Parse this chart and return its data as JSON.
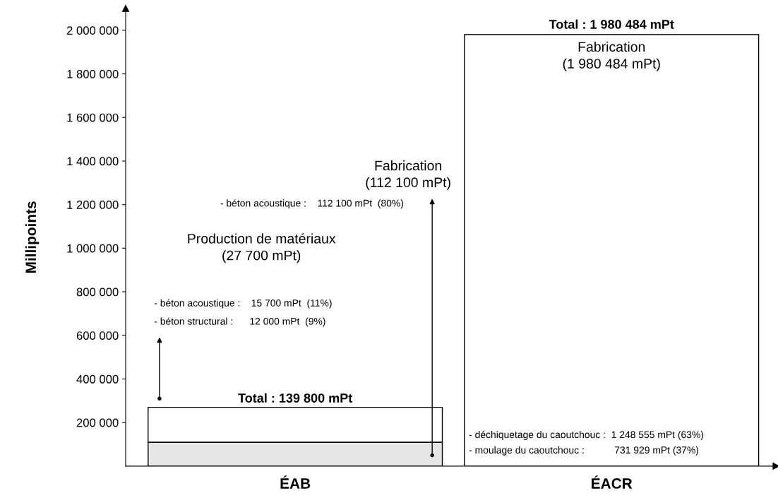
{
  "chart_data": {
    "type": "bar",
    "stacked": true,
    "ylabel": "Millipoints",
    "categories": [
      "ÉAB",
      "ÉACR"
    ],
    "series": [
      {
        "colors": [
          "#e6e6e6",
          "#ffffff"
        ],
        "values": [
          110000,
          1980000
        ]
      },
      {
        "colors": [
          "#ffffff",
          "#ffffff"
        ],
        "values": [
          160000,
          null
        ]
      }
    ],
    "ylim": [
      0,
      2100000
    ],
    "yticks": [
      {
        "value": 200000,
        "label": "200 000"
      },
      {
        "value": 400000,
        "label": "400 000"
      },
      {
        "value": 600000,
        "label": "600 000"
      },
      {
        "value": 800000,
        "label": "800 000"
      },
      {
        "value": 1000000,
        "label": "1 000 000"
      },
      {
        "value": 1200000,
        "label": "1 200 000"
      },
      {
        "value": 1400000,
        "label": "1 400 000"
      },
      {
        "value": 1600000,
        "label": "1 600 000"
      },
      {
        "value": 1800000,
        "label": "1 800 000"
      },
      {
        "value": 2000000,
        "label": "2 000 000"
      }
    ],
    "annotations": [
      "Total : 139 800 mPt",
      "Total : 1 980 484 mPt",
      "Production de matériaux\n(27 700 mPt)",
      "- béton acoustique :    15 700 mPt  (11%)",
      "- béton structural :      12 000 mPt  (9%)",
      "Fabrication\n(112 100 mPt)",
      "- béton acoustique :    112 100 mPt  (80%)",
      "Fabrication\n(1 980 484 mPt)",
      "- déchiquetage du caoutchouc :  1 248 555 mPt (63%)",
      "- moulage du caoutchouc :           731 929 mPt (37%)"
    ],
    "grid": false,
    "legend": false
  }
}
